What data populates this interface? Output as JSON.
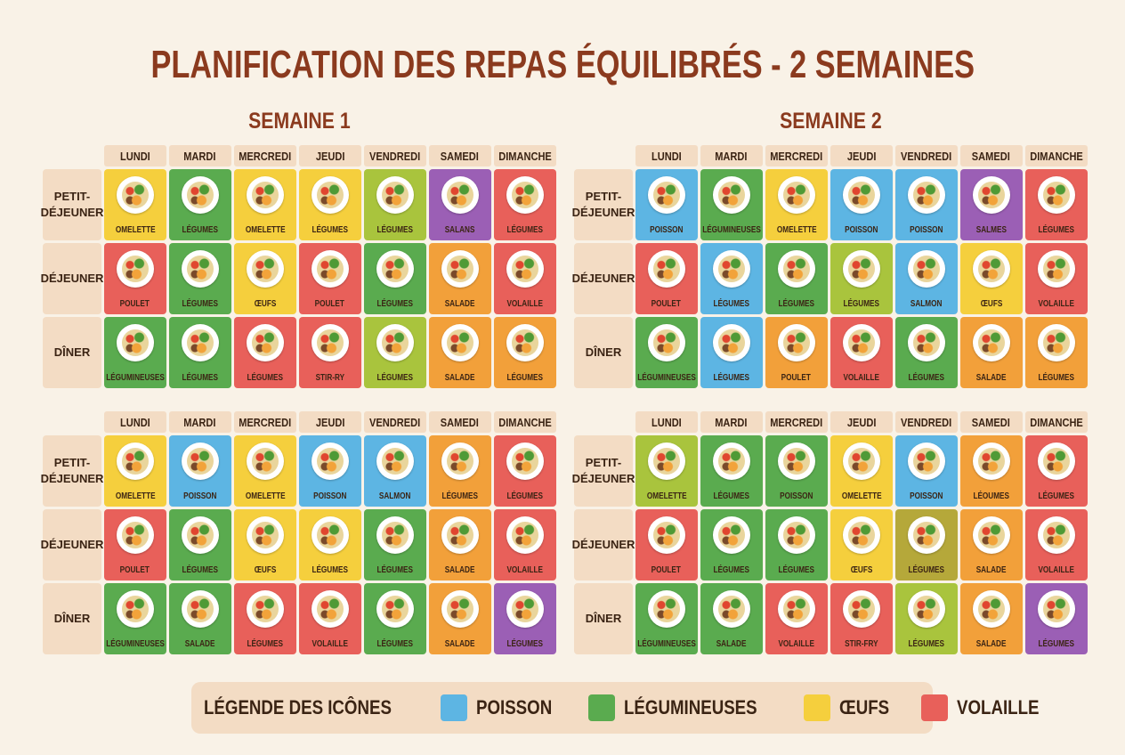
{
  "title": "PLANIFICATION DES REPAS ÉQUILIBRÉS - 2 SEMAINES",
  "weeks": [
    "SEMAINE 1",
    "SEMAINE 2"
  ],
  "days": [
    "LUNDI",
    "MARDI",
    "MERCREDI",
    "JEUDI",
    "VENDREDI",
    "SAMEDI",
    "DIMANCHE"
  ],
  "meals": [
    "PETIT-DÉJEUNER",
    "DÉJEUNER",
    "DÎNER"
  ],
  "grids": [
    {
      "cells": [
        [
          {
            "label": "OMELETTE",
            "color": "#f5cf3d"
          },
          {
            "label": "LÉGUMES",
            "color": "#5aab4f"
          },
          {
            "label": "OMELETTE",
            "color": "#f5cf3d"
          },
          {
            "label": "LÉGUMES",
            "color": "#f5cf3d"
          },
          {
            "label": "LÉGUMES",
            "color": "#a9c43d"
          },
          {
            "label": "SALANS",
            "color": "#9b5fb5"
          },
          {
            "label": "LÉGUMES",
            "color": "#e8605a"
          }
        ],
        [
          {
            "label": "POULET",
            "color": "#e8605a"
          },
          {
            "label": "LÉGUMES",
            "color": "#5aab4f"
          },
          {
            "label": "ŒUFS",
            "color": "#f5cf3d"
          },
          {
            "label": "POULET",
            "color": "#e8605a"
          },
          {
            "label": "LÉGUMES",
            "color": "#5aab4f"
          },
          {
            "label": "SALADE",
            "color": "#f2a03a"
          },
          {
            "label": "VOLAILLE",
            "color": "#e8605a"
          }
        ],
        [
          {
            "label": "LÉGUMINEUSES",
            "color": "#5aab4f"
          },
          {
            "label": "LÉGUMES",
            "color": "#5aab4f"
          },
          {
            "label": "LÉGUMES",
            "color": "#e8605a"
          },
          {
            "label": "STIR-RY",
            "color": "#e8605a"
          },
          {
            "label": "LÉGUMES",
            "color": "#a9c43d"
          },
          {
            "label": "SALADE",
            "color": "#f2a03a"
          },
          {
            "label": "LÉGUMES",
            "color": "#f2a03a"
          }
        ]
      ]
    },
    {
      "cells": [
        [
          {
            "label": "POISSON",
            "color": "#5db5e3"
          },
          {
            "label": "LÉGUMINEUSES",
            "color": "#5aab4f"
          },
          {
            "label": "OMELETTE",
            "color": "#f5cf3d"
          },
          {
            "label": "POISSON",
            "color": "#5db5e3"
          },
          {
            "label": "POISSON",
            "color": "#5db5e3"
          },
          {
            "label": "SALMES",
            "color": "#9b5fb5"
          },
          {
            "label": "LÉGUMES",
            "color": "#e8605a"
          }
        ],
        [
          {
            "label": "POULET",
            "color": "#e8605a"
          },
          {
            "label": "LÉGUMES",
            "color": "#5db5e3"
          },
          {
            "label": "LÉGUMES",
            "color": "#5aab4f"
          },
          {
            "label": "LÉGUMES",
            "color": "#a9c43d"
          },
          {
            "label": "SALMON",
            "color": "#5db5e3"
          },
          {
            "label": "ŒUFS",
            "color": "#f5cf3d"
          },
          {
            "label": "VOLAILLE",
            "color": "#e8605a"
          }
        ],
        [
          {
            "label": "LÉGUMINEUSES",
            "color": "#5aab4f"
          },
          {
            "label": "LÉGUMES",
            "color": "#5db5e3"
          },
          {
            "label": "POULET",
            "color": "#f2a03a"
          },
          {
            "label": "VOLAILLE",
            "color": "#e8605a"
          },
          {
            "label": "LÉGUMES",
            "color": "#5aab4f"
          },
          {
            "label": "SALADE",
            "color": "#f2a03a"
          },
          {
            "label": "LÉGUMES",
            "color": "#f2a03a"
          }
        ]
      ]
    },
    {
      "cells": [
        [
          {
            "label": "OMELETTE",
            "color": "#f5cf3d"
          },
          {
            "label": "POISSON",
            "color": "#5db5e3"
          },
          {
            "label": "OMELETTE",
            "color": "#f5cf3d"
          },
          {
            "label": "POISSON",
            "color": "#5db5e3"
          },
          {
            "label": "SALMON",
            "color": "#5db5e3"
          },
          {
            "label": "LÉGUMES",
            "color": "#f2a03a"
          },
          {
            "label": "LÉGUMES",
            "color": "#e8605a"
          }
        ],
        [
          {
            "label": "POULET",
            "color": "#e8605a"
          },
          {
            "label": "LÉGUMES",
            "color": "#5aab4f"
          },
          {
            "label": "ŒUFS",
            "color": "#f5cf3d"
          },
          {
            "label": "LÉGUMES",
            "color": "#f5cf3d"
          },
          {
            "label": "LÉGUMES",
            "color": "#5aab4f"
          },
          {
            "label": "SALADE",
            "color": "#f2a03a"
          },
          {
            "label": "VOLAILLE",
            "color": "#e8605a"
          }
        ],
        [
          {
            "label": "LÉGUMINEUSES",
            "color": "#5aab4f"
          },
          {
            "label": "SALADE",
            "color": "#5aab4f"
          },
          {
            "label": "LÉGUMES",
            "color": "#e8605a"
          },
          {
            "label": "VOLAILLE",
            "color": "#e8605a"
          },
          {
            "label": "LÉGUMES",
            "color": "#5aab4f"
          },
          {
            "label": "SALADE",
            "color": "#f2a03a"
          },
          {
            "label": "LÉGUMES",
            "color": "#9b5fb5"
          }
        ]
      ]
    },
    {
      "cells": [
        [
          {
            "label": "OMELETTE",
            "color": "#a9c43d"
          },
          {
            "label": "LÉGUMES",
            "color": "#5aab4f"
          },
          {
            "label": "POISSON",
            "color": "#5aab4f"
          },
          {
            "label": "OMELETTE",
            "color": "#f5cf3d"
          },
          {
            "label": "POISSON",
            "color": "#5db5e3"
          },
          {
            "label": "LÉOUMES",
            "color": "#f2a03a"
          },
          {
            "label": "LÉGUMES",
            "color": "#e8605a"
          }
        ],
        [
          {
            "label": "POULET",
            "color": "#e8605a"
          },
          {
            "label": "LÉGUMES",
            "color": "#5aab4f"
          },
          {
            "label": "LÉGUMES",
            "color": "#5aab4f"
          },
          {
            "label": "ŒUFS",
            "color": "#f5cf3d"
          },
          {
            "label": "LÉGUMES",
            "color": "#b5a83a"
          },
          {
            "label": "SALADE",
            "color": "#f2a03a"
          },
          {
            "label": "VOLAILLE",
            "color": "#e8605a"
          }
        ],
        [
          {
            "label": "LÉGUMINEUSES",
            "color": "#5aab4f"
          },
          {
            "label": "SALADE",
            "color": "#5aab4f"
          },
          {
            "label": "VOLAILLE",
            "color": "#e8605a"
          },
          {
            "label": "STIR-FRY",
            "color": "#e8605a"
          },
          {
            "label": "LÉGUMES",
            "color": "#a9c43d"
          },
          {
            "label": "SALADE",
            "color": "#f2a03a"
          },
          {
            "label": "LÉGUMES",
            "color": "#9b5fb5"
          }
        ]
      ]
    }
  ],
  "legend": {
    "title": "LÉGENDE DES ICÔNES",
    "items": [
      {
        "label": "POISSON",
        "color": "#5db5e3"
      },
      {
        "label": "LÉGUMINEUSES",
        "color": "#5aab4f"
      },
      {
        "label": "ŒUFS",
        "color": "#f5cf3d"
      },
      {
        "label": "VOLAILLE",
        "color": "#e8605a"
      }
    ]
  }
}
